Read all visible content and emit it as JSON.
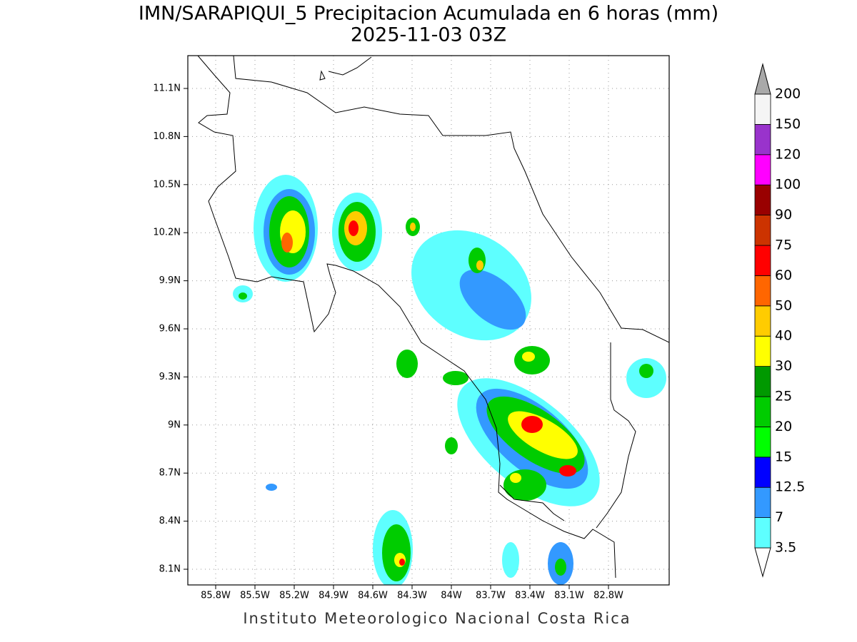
{
  "title": "IMN/SARAPIQUI_5 Precipitacion Acumulada en 6 horas (mm)",
  "subtitle": "2025-11-03 03Z",
  "footer": "Instituto Meteorologico Nacional Costa Rica",
  "map": {
    "lat_labels": [
      "11.1N",
      "10.8N",
      "10.5N",
      "10.2N",
      "9.9N",
      "9.6N",
      "9.3N",
      "9N",
      "8.7N",
      "8.4N",
      "8.1N"
    ],
    "lon_labels": [
      "85.8W",
      "85.5W",
      "85.2W",
      "84.9W",
      "84.6W",
      "84.3W",
      "84W",
      "83.7W",
      "83.4W",
      "83.1W",
      "82.8W"
    ]
  },
  "colorbar": {
    "levels": [
      3.5,
      7,
      12.5,
      15,
      20,
      25,
      30,
      40,
      50,
      60,
      75,
      90,
      100,
      120,
      150,
      200
    ],
    "colors": [
      "#5effff",
      "#3399ff",
      "#0000ff",
      "#00ff00",
      "#00cc00",
      "#009900",
      "#ffff00",
      "#ffcc00",
      "#ff6600",
      "#ff0000",
      "#cc3300",
      "#990000",
      "#ff00ff",
      "#9933cc",
      "#f5f5f5"
    ],
    "over_color": "#a9a9a9",
    "under_color": "#ffffff"
  }
}
